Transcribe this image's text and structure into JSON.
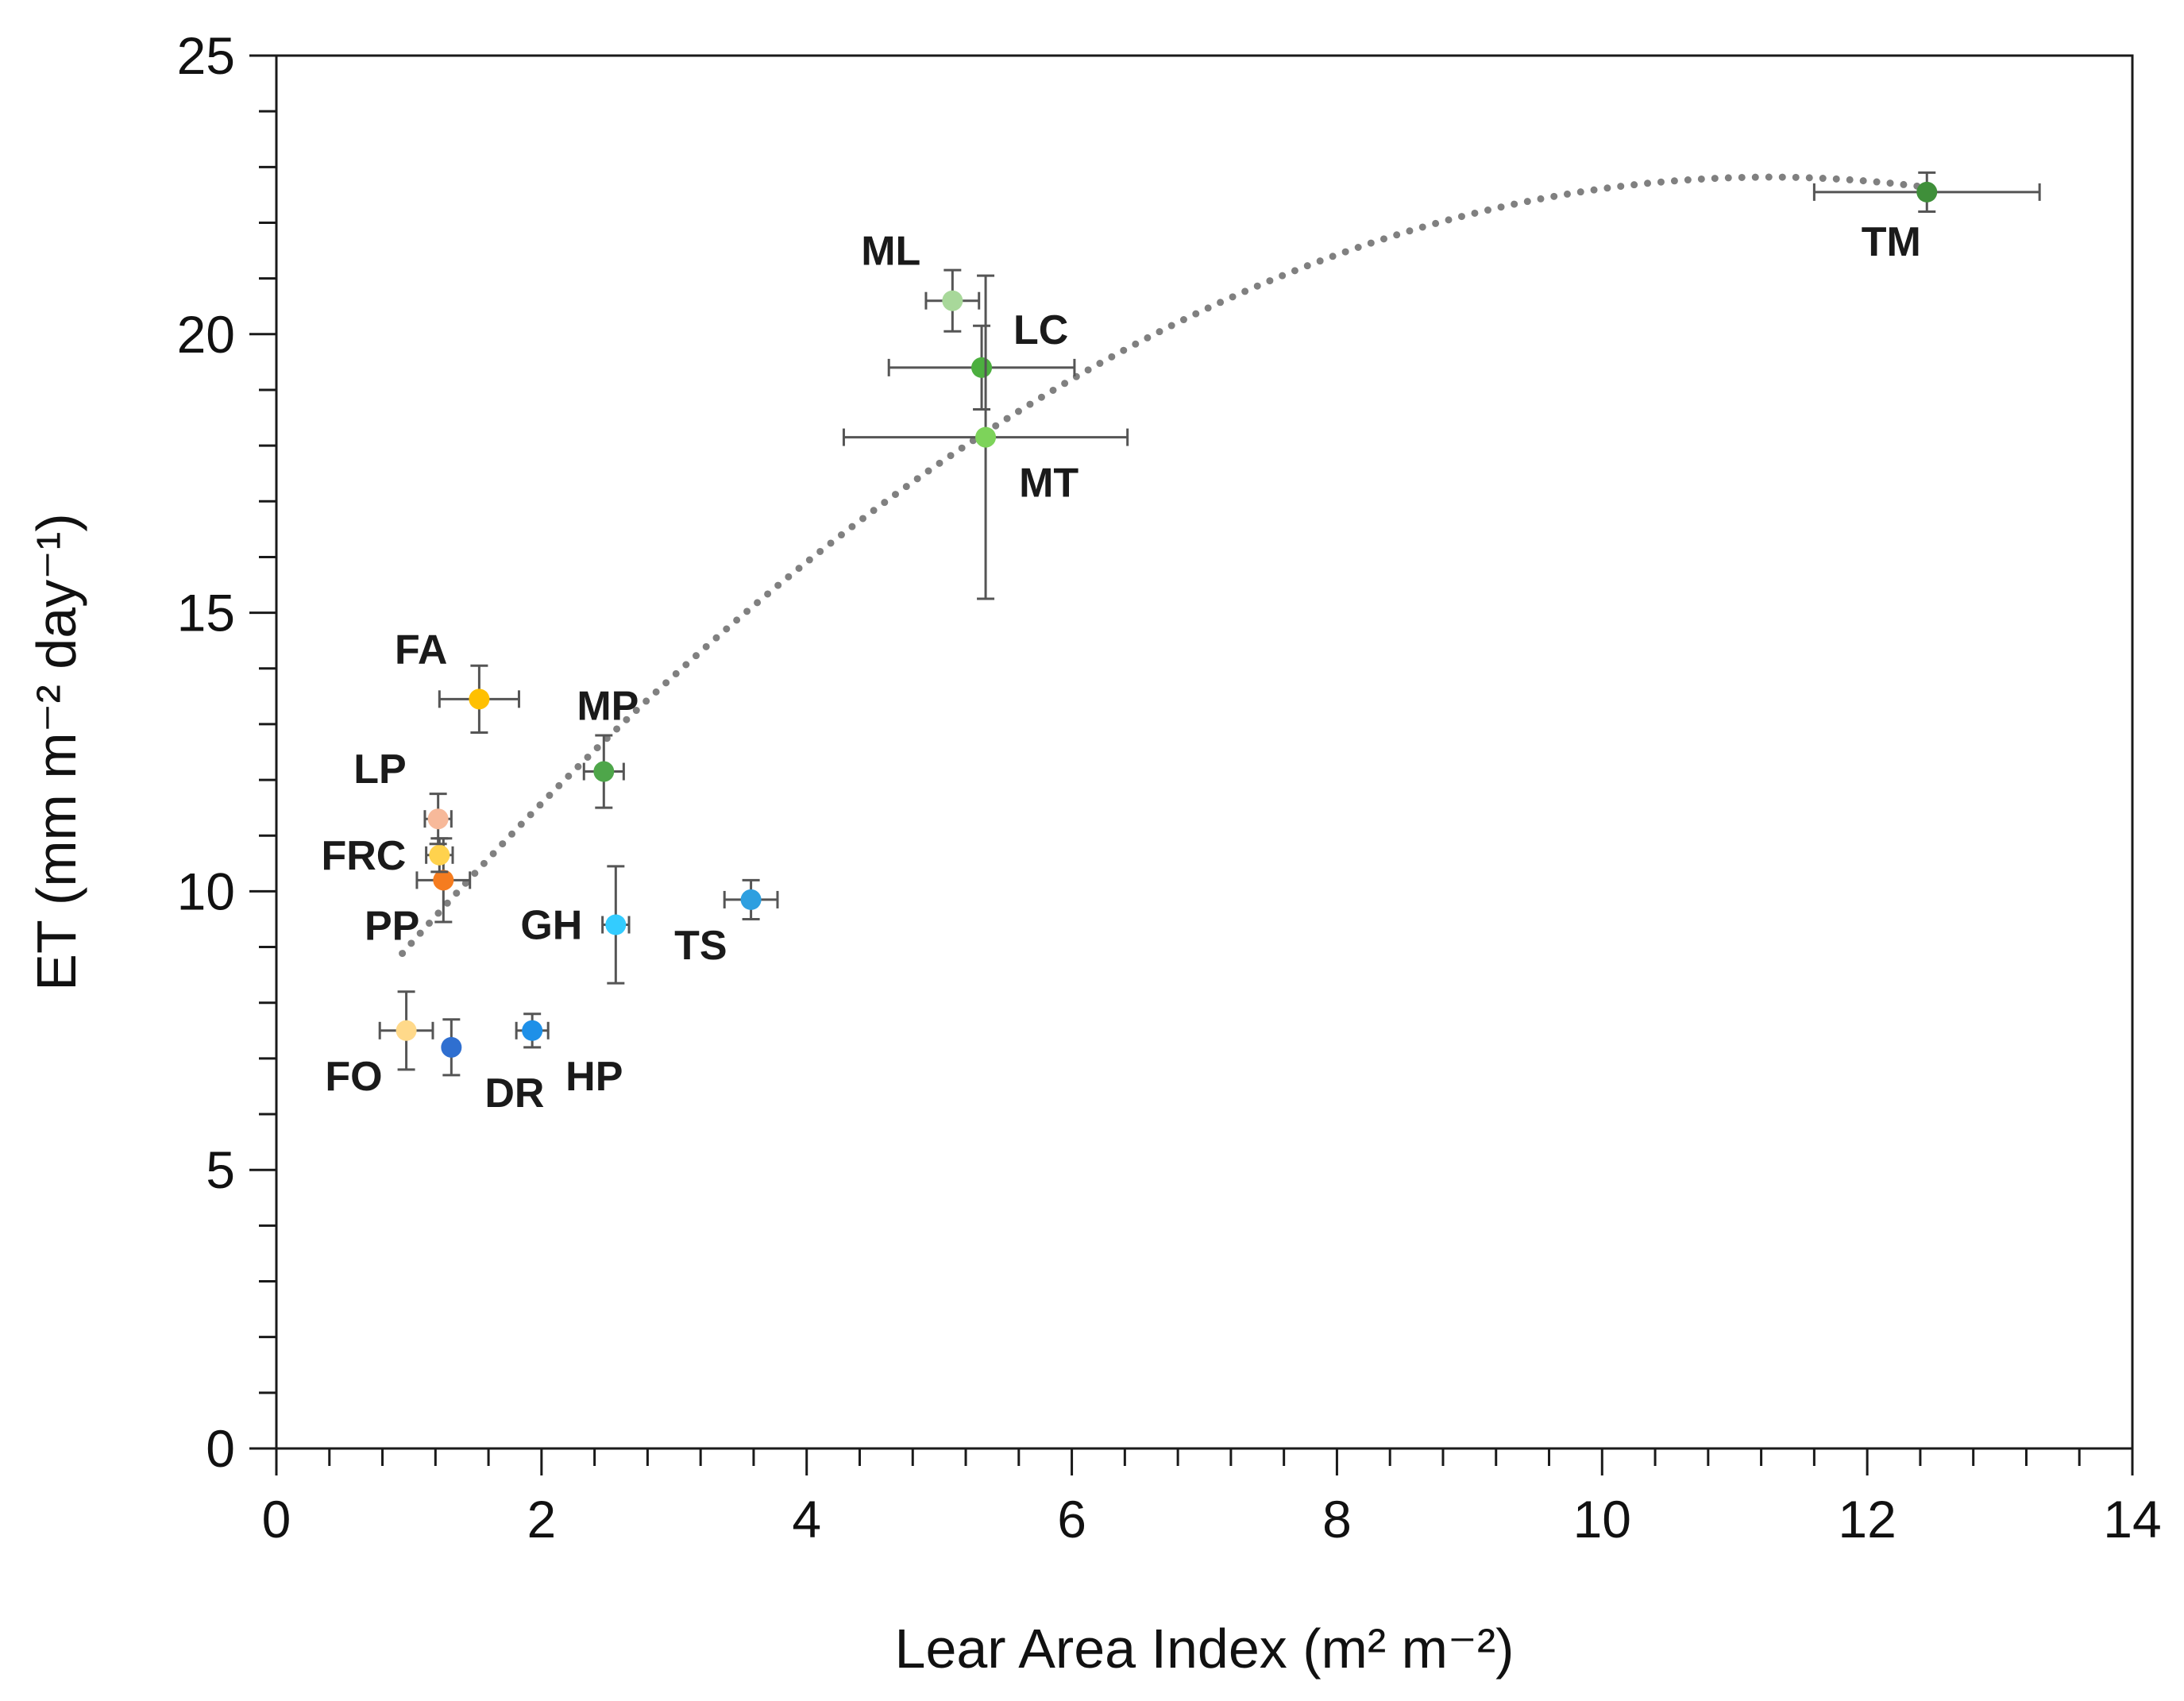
{
  "chart_data": {
    "type": "scatter",
    "title": "",
    "xlabel": "Lear Area Index (m² m⁻²)",
    "ylabel": "ET (mm m⁻² day⁻¹)",
    "xlim": [
      0,
      14
    ],
    "ylim": [
      0,
      25
    ],
    "x_ticks": [
      "0",
      "2",
      "4",
      "6",
      "8",
      "10",
      "12",
      "14"
    ],
    "y_ticks": [
      "0",
      "5",
      "10",
      "15",
      "20",
      "25"
    ],
    "grid": false,
    "points": [
      {
        "label": "FO",
        "x": 0.98,
        "y": 7.5,
        "xerr": 0.2,
        "yerr": 0.7,
        "color": "#ffd98a",
        "label_pos": "bottom-left"
      },
      {
        "label": "DR",
        "x": 1.32,
        "y": 7.2,
        "xerr": 0.0,
        "yerr": 0.5,
        "color": "#2f6fd0",
        "label_pos": "bottom-right"
      },
      {
        "label": "HP",
        "x": 1.93,
        "y": 7.5,
        "xerr": 0.12,
        "yerr": 0.3,
        "color": "#1e90e8",
        "label_pos": "bottom-right"
      },
      {
        "label": "PP",
        "x": 1.26,
        "y": 10.2,
        "xerr": 0.2,
        "yerr": 0.75,
        "color": "#f57c1f",
        "label_pos": "bottom-left"
      },
      {
        "label": "FRC",
        "x": 1.23,
        "y": 10.65,
        "xerr": 0.1,
        "yerr": 0.3,
        "color": "#ffd24d",
        "label_pos": "left"
      },
      {
        "label": "LP",
        "x": 1.22,
        "y": 11.3,
        "xerr": 0.1,
        "yerr": 0.45,
        "color": "#f7b99a",
        "label_pos": "top-left"
      },
      {
        "label": "FA",
        "x": 1.53,
        "y": 13.45,
        "xerr": 0.3,
        "yerr": 0.6,
        "color": "#ffc000",
        "label_pos": "top-left"
      },
      {
        "label": "MP",
        "x": 2.47,
        "y": 12.15,
        "xerr": 0.15,
        "yerr": 0.65,
        "color": "#4ea64a",
        "label_pos": "top"
      },
      {
        "label": "GH",
        "x": 2.56,
        "y": 9.4,
        "xerr": 0.1,
        "yerr": 1.05,
        "color": "#33ccff",
        "label_pos": "left"
      },
      {
        "label": "TS",
        "x": 3.58,
        "y": 9.85,
        "xerr": 0.2,
        "yerr": 0.35,
        "color": "#2e9fe0",
        "label_pos": "bottom-left"
      },
      {
        "label": "ML",
        "x": 5.1,
        "y": 20.6,
        "xerr": 0.2,
        "yerr": 0.55,
        "color": "#a8d89a",
        "label_pos": "top-left"
      },
      {
        "label": "LC",
        "x": 5.32,
        "y": 19.4,
        "xerr": 0.7,
        "yerr": 0.75,
        "color": "#4caf3f",
        "label_pos": "top-right"
      },
      {
        "label": "MT",
        "x": 5.35,
        "y": 18.15,
        "xerr": 1.07,
        "yerr": 2.9,
        "color": "#7dd35a",
        "label_pos": "bottom-right"
      },
      {
        "label": "TM",
        "x": 12.45,
        "y": 22.55,
        "xerr": 0.85,
        "yerr": 0.35,
        "color": "#3f8f3a",
        "label_pos": "bottom"
      }
    ],
    "trendline": {
      "type": "polynomial-2",
      "style": "dotted",
      "color": "#808080",
      "x_range": [
        0.95,
        12.45
      ],
      "coefficients": [
        -0.131,
        2.951,
        6.2
      ]
    }
  }
}
